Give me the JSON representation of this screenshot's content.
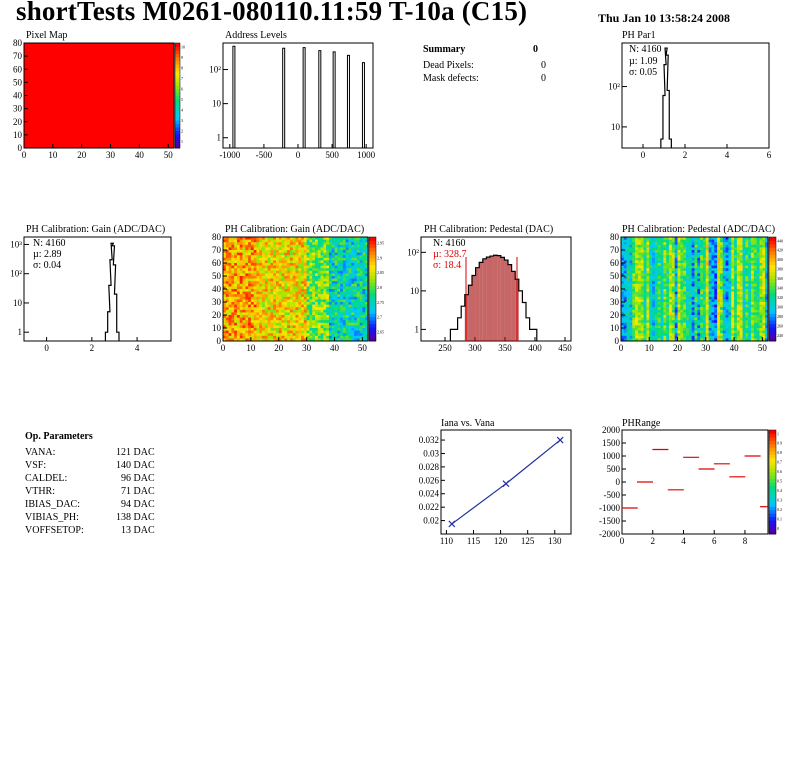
{
  "header": {
    "title": "shortTests M0261-080110.11:59 T-10a (C15)",
    "date": "Thu Jan 10 13:58:24 2008"
  },
  "summary": {
    "title": "Summary",
    "title_value": "0",
    "rows": [
      {
        "label": "Dead Pixels:",
        "value": "0"
      },
      {
        "label": "Mask defects:",
        "value": "0"
      }
    ]
  },
  "stats": {
    "phpar1": {
      "n": "N: 4160",
      "mu": "µ: 1.09",
      "sigma": "σ: 0.05"
    },
    "gain": {
      "n": "N: 4160",
      "mu": "µ: 2.89",
      "sigma": "σ: 0.04"
    },
    "pedestal": {
      "n": "N: 4160",
      "mu": "µ: 328.7",
      "sigma": "σ: 18.4"
    }
  },
  "op_parameters": {
    "title": "Op. Parameters",
    "rows": [
      {
        "name": "VANA:",
        "value": "121 DAC"
      },
      {
        "name": "VSF:",
        "value": "140 DAC"
      },
      {
        "name": "CALDEL:",
        "value": "96 DAC"
      },
      {
        "name": "VTHR:",
        "value": "71 DAC"
      },
      {
        "name": "IBIAS_DAC:",
        "value": "94 DAC"
      },
      {
        "name": "VIBIAS_PH:",
        "value": "138 DAC"
      },
      {
        "name": "VOFFSETOP:",
        "value": "13 DAC"
      }
    ]
  },
  "colors": {
    "histogram_fill": "#a00000",
    "fit_line": "#e00000",
    "trend_line": "#2030a0",
    "map_red": "#ff0000"
  },
  "chart_data": [
    {
      "id": "pixel_map",
      "type": "heatmap",
      "title": "Pixel Map",
      "xlim": [
        0,
        52
      ],
      "ylim": [
        0,
        80
      ],
      "x_ticks": [
        "0",
        "10",
        "20",
        "30",
        "40",
        "50"
      ],
      "y_ticks": [
        "0",
        "10",
        "20",
        "30",
        "40",
        "50",
        "60",
        "70",
        "80"
      ],
      "colorbar_ticks": [
        "1",
        "2",
        "3",
        "4",
        "5",
        "6",
        "7",
        "8",
        "9",
        "10"
      ],
      "uniform_value": 10
    },
    {
      "id": "address_levels",
      "type": "bar",
      "title": "Address Levels",
      "xlim": [
        -1100,
        1100
      ],
      "log_y": true,
      "ylim": [
        0.5,
        600
      ],
      "x_ticks": [
        "-1000",
        "-500",
        "0",
        "500",
        "1000"
      ],
      "y_ticks": [
        "1",
        "10",
        "10²"
      ],
      "peaks": [
        {
          "x": -940,
          "y": 480
        },
        {
          "x": -210,
          "y": 420
        },
        {
          "x": 90,
          "y": 440
        },
        {
          "x": 320,
          "y": 360
        },
        {
          "x": 530,
          "y": 330
        },
        {
          "x": 740,
          "y": 260
        },
        {
          "x": 960,
          "y": 160
        }
      ]
    },
    {
      "id": "ph_par1",
      "type": "bar",
      "title": "PH Par1",
      "xlim": [
        -1,
        6
      ],
      "log_y": true,
      "ylim": [
        3,
        1200
      ],
      "x_ticks": [
        "0",
        "2",
        "4",
        "6"
      ],
      "y_ticks": [
        "10",
        "10²"
      ],
      "x": [
        0.9,
        1.0,
        1.05,
        1.1,
        1.15,
        1.2,
        1.3
      ],
      "y": [
        5,
        60,
        350,
        900,
        600,
        80,
        5
      ]
    },
    {
      "id": "ph_gain_hist",
      "type": "bar",
      "title": "PH Calibration: Gain (ADC/DAC)",
      "xlim": [
        -1,
        5.5
      ],
      "log_y": true,
      "ylim": [
        0.5,
        1800
      ],
      "x_ticks": [
        "0",
        "2",
        "4"
      ],
      "y_ticks": [
        "1",
        "10",
        "10²",
        "10³"
      ],
      "x": [
        2.65,
        2.75,
        2.8,
        2.85,
        2.9,
        2.95,
        3.0,
        3.05,
        3.15
      ],
      "y": [
        1,
        5,
        40,
        300,
        1100,
        900,
        200,
        20,
        1
      ]
    },
    {
      "id": "ph_gain_map",
      "type": "heatmap",
      "title": "PH Calibration: Gain (ADC/DAC)",
      "xlim": [
        0,
        52
      ],
      "ylim": [
        0,
        80
      ],
      "x_ticks": [
        "0",
        "10",
        "20",
        "30",
        "40",
        "50"
      ],
      "y_ticks": [
        "0",
        "10",
        "20",
        "30",
        "40",
        "50",
        "60",
        "70",
        "80"
      ],
      "colorbar_ticks": [
        "2.65",
        "2.7",
        "2.75",
        "2.8",
        "2.85",
        "2.9",
        "2.95"
      ],
      "value_range": [
        2.65,
        2.97
      ]
    },
    {
      "id": "ph_pedestal_hist",
      "type": "bar",
      "title": "PH Calibration: Pedestal (DAC)",
      "xlim": [
        210,
        460
      ],
      "log_y": true,
      "ylim": [
        0.5,
        250
      ],
      "x_ticks": [
        "250",
        "300",
        "350",
        "400",
        "450"
      ],
      "y_ticks": [
        "1",
        "10",
        "10²"
      ],
      "fit_range": [
        285,
        370
      ],
      "x": [
        262,
        268,
        274,
        280,
        286,
        292,
        298,
        304,
        310,
        316,
        322,
        328,
        334,
        340,
        346,
        352,
        358,
        364,
        370,
        376,
        382,
        388,
        394,
        400
      ],
      "y": [
        1,
        1,
        2,
        4,
        8,
        14,
        25,
        40,
        55,
        68,
        75,
        80,
        84,
        82,
        74,
        63,
        48,
        32,
        20,
        10,
        5,
        2,
        1,
        1
      ]
    },
    {
      "id": "ph_pedestal_map",
      "type": "heatmap",
      "title": "PH Calibration: Pedestal (ADC/DAC)",
      "xlim": [
        0,
        52
      ],
      "ylim": [
        0,
        80
      ],
      "x_ticks": [
        "0",
        "10",
        "20",
        "30",
        "40",
        "50"
      ],
      "y_ticks": [
        "0",
        "10",
        "20",
        "30",
        "40",
        "50",
        "60",
        "70",
        "80"
      ],
      "colorbar_ticks": [
        "240",
        "260",
        "280",
        "300",
        "320",
        "340",
        "360",
        "380",
        "400",
        "420",
        "440"
      ],
      "value_range": [
        235,
        450
      ]
    },
    {
      "id": "iana_vs_vana",
      "type": "line",
      "title": "Iana vs. Vana",
      "xlim": [
        109,
        133
      ],
      "ylim": [
        0.018,
        0.0335
      ],
      "x_ticks": [
        "110",
        "115",
        "120",
        "125",
        "130"
      ],
      "y_ticks": [
        "0.02",
        "0.022",
        "0.024",
        "0.026",
        "0.028",
        "0.03",
        "0.032"
      ],
      "x": [
        111,
        121,
        131
      ],
      "y": [
        0.0195,
        0.0255,
        0.032
      ]
    },
    {
      "id": "ph_range",
      "type": "scatter",
      "title": "PHRange",
      "xlim": [
        0,
        9.5
      ],
      "ylim": [
        -2000,
        2000
      ],
      "x_ticks": [
        "0",
        "2",
        "4",
        "6",
        "8"
      ],
      "y_ticks": [
        "-2000",
        "-1500",
        "-1000",
        "-500",
        "0",
        "500",
        "1000",
        "1500",
        "2000"
      ],
      "colorbar_ticks": [
        "0",
        "0.1",
        "0.2",
        "0.3",
        "0.4",
        "0.5",
        "0.6",
        "0.7",
        "0.8",
        "0.9",
        "1"
      ],
      "segments": [
        {
          "x": 0.5,
          "y": -1000
        },
        {
          "x": 1.5,
          "y": 0
        },
        {
          "x": 2.5,
          "y": 1250
        },
        {
          "x": 3.5,
          "y": -300
        },
        {
          "x": 4.5,
          "y": 950
        },
        {
          "x": 5.5,
          "y": 500
        },
        {
          "x": 6.5,
          "y": 700
        },
        {
          "x": 7.5,
          "y": 200
        },
        {
          "x": 8.5,
          "y": 1000
        },
        {
          "x": 9.5,
          "y": -950
        }
      ]
    }
  ]
}
